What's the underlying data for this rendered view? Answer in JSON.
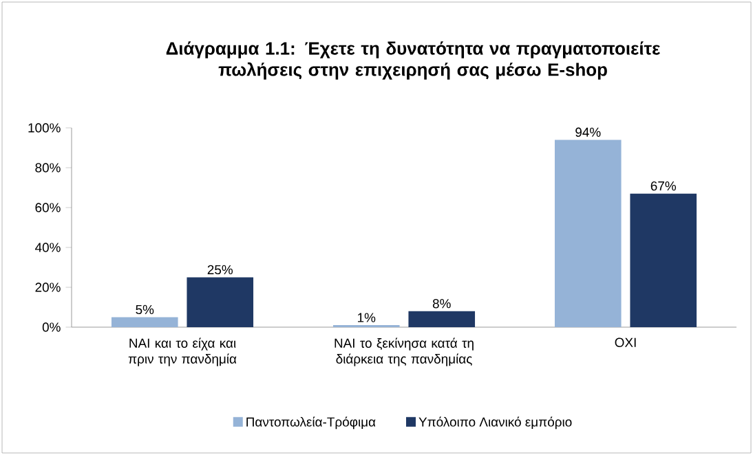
{
  "chart_data": {
    "type": "bar",
    "title": "Διάγραμμα 1.1: Έχετε τη δυνατότητα να πραγματοποιείτε πωλήσεις στην επιχειρησή σας μέσω E-shop",
    "categories": [
      "ΝΑΙ και το είχα και πριν την πανδημία",
      "ΝΑΙ το ξεκίνησα κατά τη διάρκεια της πανδημίας",
      "ΟΧΙ"
    ],
    "series": [
      {
        "name": "Παντοπωλεία-Τρόφιμα",
        "color": "#95b3d7",
        "values": [
          5,
          1,
          94
        ],
        "value_labels": [
          "5%",
          "1%",
          "94%"
        ]
      },
      {
        "name": "Υπόλοιπο Λιανικό εμπόριο",
        "color": "#1f3864",
        "values": [
          25,
          8,
          67
        ],
        "value_labels": [
          "25%",
          "8%",
          "67%"
        ]
      }
    ],
    "ylim": [
      0,
      100
    ],
    "yticks": [
      {
        "value": 0,
        "label": "0%"
      },
      {
        "value": 20,
        "label": "20%"
      },
      {
        "value": 40,
        "label": "40%"
      },
      {
        "value": 60,
        "label": "60%"
      },
      {
        "value": 80,
        "label": "80%"
      },
      {
        "value": 100,
        "label": "100%"
      }
    ],
    "grid": false,
    "legend": "bottom"
  }
}
